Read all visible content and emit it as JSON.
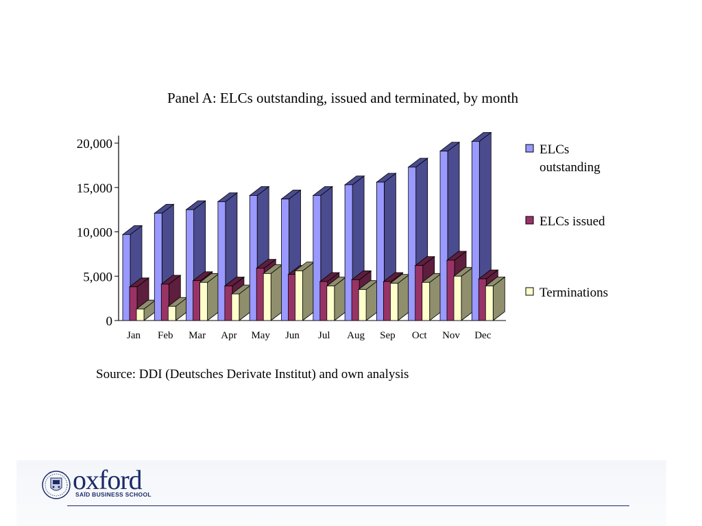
{
  "source_note": "Source: DDI (Deutsches Derivate Institut) and own analysis",
  "logo": {
    "wordmark": "oxford",
    "subtitle": "SAÏD BUSINESS SCHOOL",
    "crest_icon": "university-crest-icon"
  },
  "colors": {
    "outstanding_front": "#9999ff",
    "outstanding_side": "#4b4b8f",
    "issued_front": "#993366",
    "issued_side": "#5e1e3e",
    "terminations_front": "#ffffcc",
    "terminations_side": "#8f8f6e",
    "footer_rule": "#1f2a6b"
  },
  "chart_data": {
    "type": "bar",
    "title": "Panel A: ELCs outstanding, issued and terminated, by month",
    "xlabel": "",
    "ylabel": "",
    "ylim": [
      0,
      20000
    ],
    "yticks": [
      0,
      5000,
      10000,
      15000,
      20000
    ],
    "ytick_labels": [
      "0",
      "5,000",
      "10,000",
      "15,000",
      "20,000"
    ],
    "categories": [
      "Jan",
      "Feb",
      "Mar",
      "Apr",
      "May",
      "Jun",
      "Jul",
      "Aug",
      "Sep",
      "Oct",
      "Nov",
      "Dec"
    ],
    "legend_position": "right",
    "style": "3d-clustered-columns",
    "series": [
      {
        "name": "ELCs outstanding",
        "legend_lines": [
          "ELCs",
          "outstanding"
        ],
        "values": [
          9700,
          12100,
          12500,
          13400,
          14100,
          13700,
          14100,
          15300,
          15600,
          17300,
          19100,
          20200
        ]
      },
      {
        "name": "ELCs issued",
        "legend_lines": [
          "ELCs issued"
        ],
        "values": [
          3800,
          4100,
          4500,
          3900,
          5900,
          5200,
          4400,
          4600,
          4400,
          6200,
          6800,
          4700
        ]
      },
      {
        "name": "Terminations",
        "legend_lines": [
          "Terminations"
        ],
        "values": [
          1300,
          1600,
          4300,
          3000,
          5300,
          5600,
          3900,
          3500,
          4200,
          4300,
          5000,
          3900
        ]
      }
    ]
  }
}
